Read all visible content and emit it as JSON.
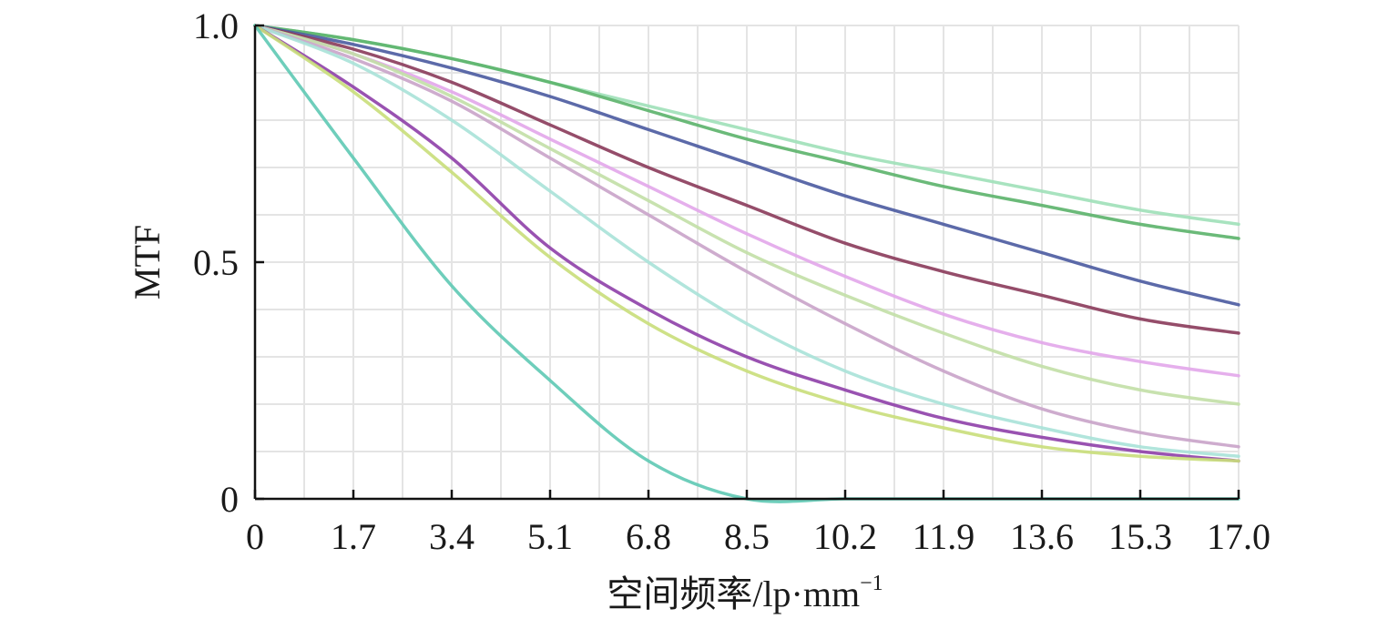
{
  "chart_data": {
    "type": "line",
    "xlabel": "空间频率/lp·mm",
    "xlabel_superscript": "−1",
    "ylabel": "MTF",
    "xlim": [
      0,
      17.0
    ],
    "ylim": [
      0,
      1.0
    ],
    "x_ticks": [
      "0",
      "1.7",
      "3.4",
      "5.1",
      "6.8",
      "8.5",
      "10.2",
      "11.9",
      "13.6",
      "15.3",
      "17.0"
    ],
    "y_ticks": [
      "0",
      "0.5",
      "1.0"
    ],
    "grid": true,
    "x_minor_grid_step": 0.85,
    "y_minor_grid_step": 0.1,
    "x": [
      0,
      1.7,
      3.4,
      5.1,
      6.8,
      8.5,
      10.2,
      11.9,
      13.6,
      15.3,
      17.0
    ],
    "series": [
      {
        "color": "#9fe0b8",
        "values": [
          1.0,
          0.97,
          0.93,
          0.88,
          0.83,
          0.78,
          0.73,
          0.69,
          0.65,
          0.61,
          0.58
        ]
      },
      {
        "color": "#5bb36a",
        "values": [
          1.0,
          0.97,
          0.93,
          0.88,
          0.82,
          0.76,
          0.71,
          0.66,
          0.62,
          0.58,
          0.55
        ]
      },
      {
        "color": "#4a5aa0",
        "values": [
          1.0,
          0.96,
          0.91,
          0.85,
          0.78,
          0.71,
          0.64,
          0.58,
          0.52,
          0.46,
          0.41
        ]
      },
      {
        "color": "#8a3a5a",
        "values": [
          1.0,
          0.95,
          0.88,
          0.79,
          0.7,
          0.62,
          0.54,
          0.48,
          0.43,
          0.38,
          0.35
        ]
      },
      {
        "color": "#e2a6ea",
        "values": [
          1.0,
          0.94,
          0.86,
          0.76,
          0.66,
          0.56,
          0.47,
          0.39,
          0.33,
          0.29,
          0.26
        ]
      },
      {
        "color": "#c2dfa6",
        "values": [
          1.0,
          0.94,
          0.85,
          0.74,
          0.63,
          0.52,
          0.43,
          0.35,
          0.28,
          0.23,
          0.2
        ]
      },
      {
        "color": "#c9a3c9",
        "values": [
          1.0,
          0.93,
          0.84,
          0.72,
          0.6,
          0.48,
          0.37,
          0.27,
          0.19,
          0.14,
          0.11
        ]
      },
      {
        "color": "#a9e2d8",
        "values": [
          1.0,
          0.92,
          0.8,
          0.65,
          0.5,
          0.37,
          0.27,
          0.2,
          0.15,
          0.11,
          0.09
        ]
      },
      {
        "color": "#8e3fa8",
        "values": [
          1.0,
          0.87,
          0.72,
          0.53,
          0.4,
          0.3,
          0.23,
          0.17,
          0.13,
          0.1,
          0.08
        ]
      },
      {
        "color": "#c9de7a",
        "values": [
          1.0,
          0.86,
          0.69,
          0.51,
          0.37,
          0.27,
          0.2,
          0.15,
          0.11,
          0.09,
          0.08
        ]
      },
      {
        "color": "#5ec9b4",
        "values": [
          1.0,
          0.72,
          0.45,
          0.25,
          0.08,
          0.0,
          0.0,
          0.0,
          0.0,
          0.0,
          0.0
        ]
      }
    ]
  }
}
